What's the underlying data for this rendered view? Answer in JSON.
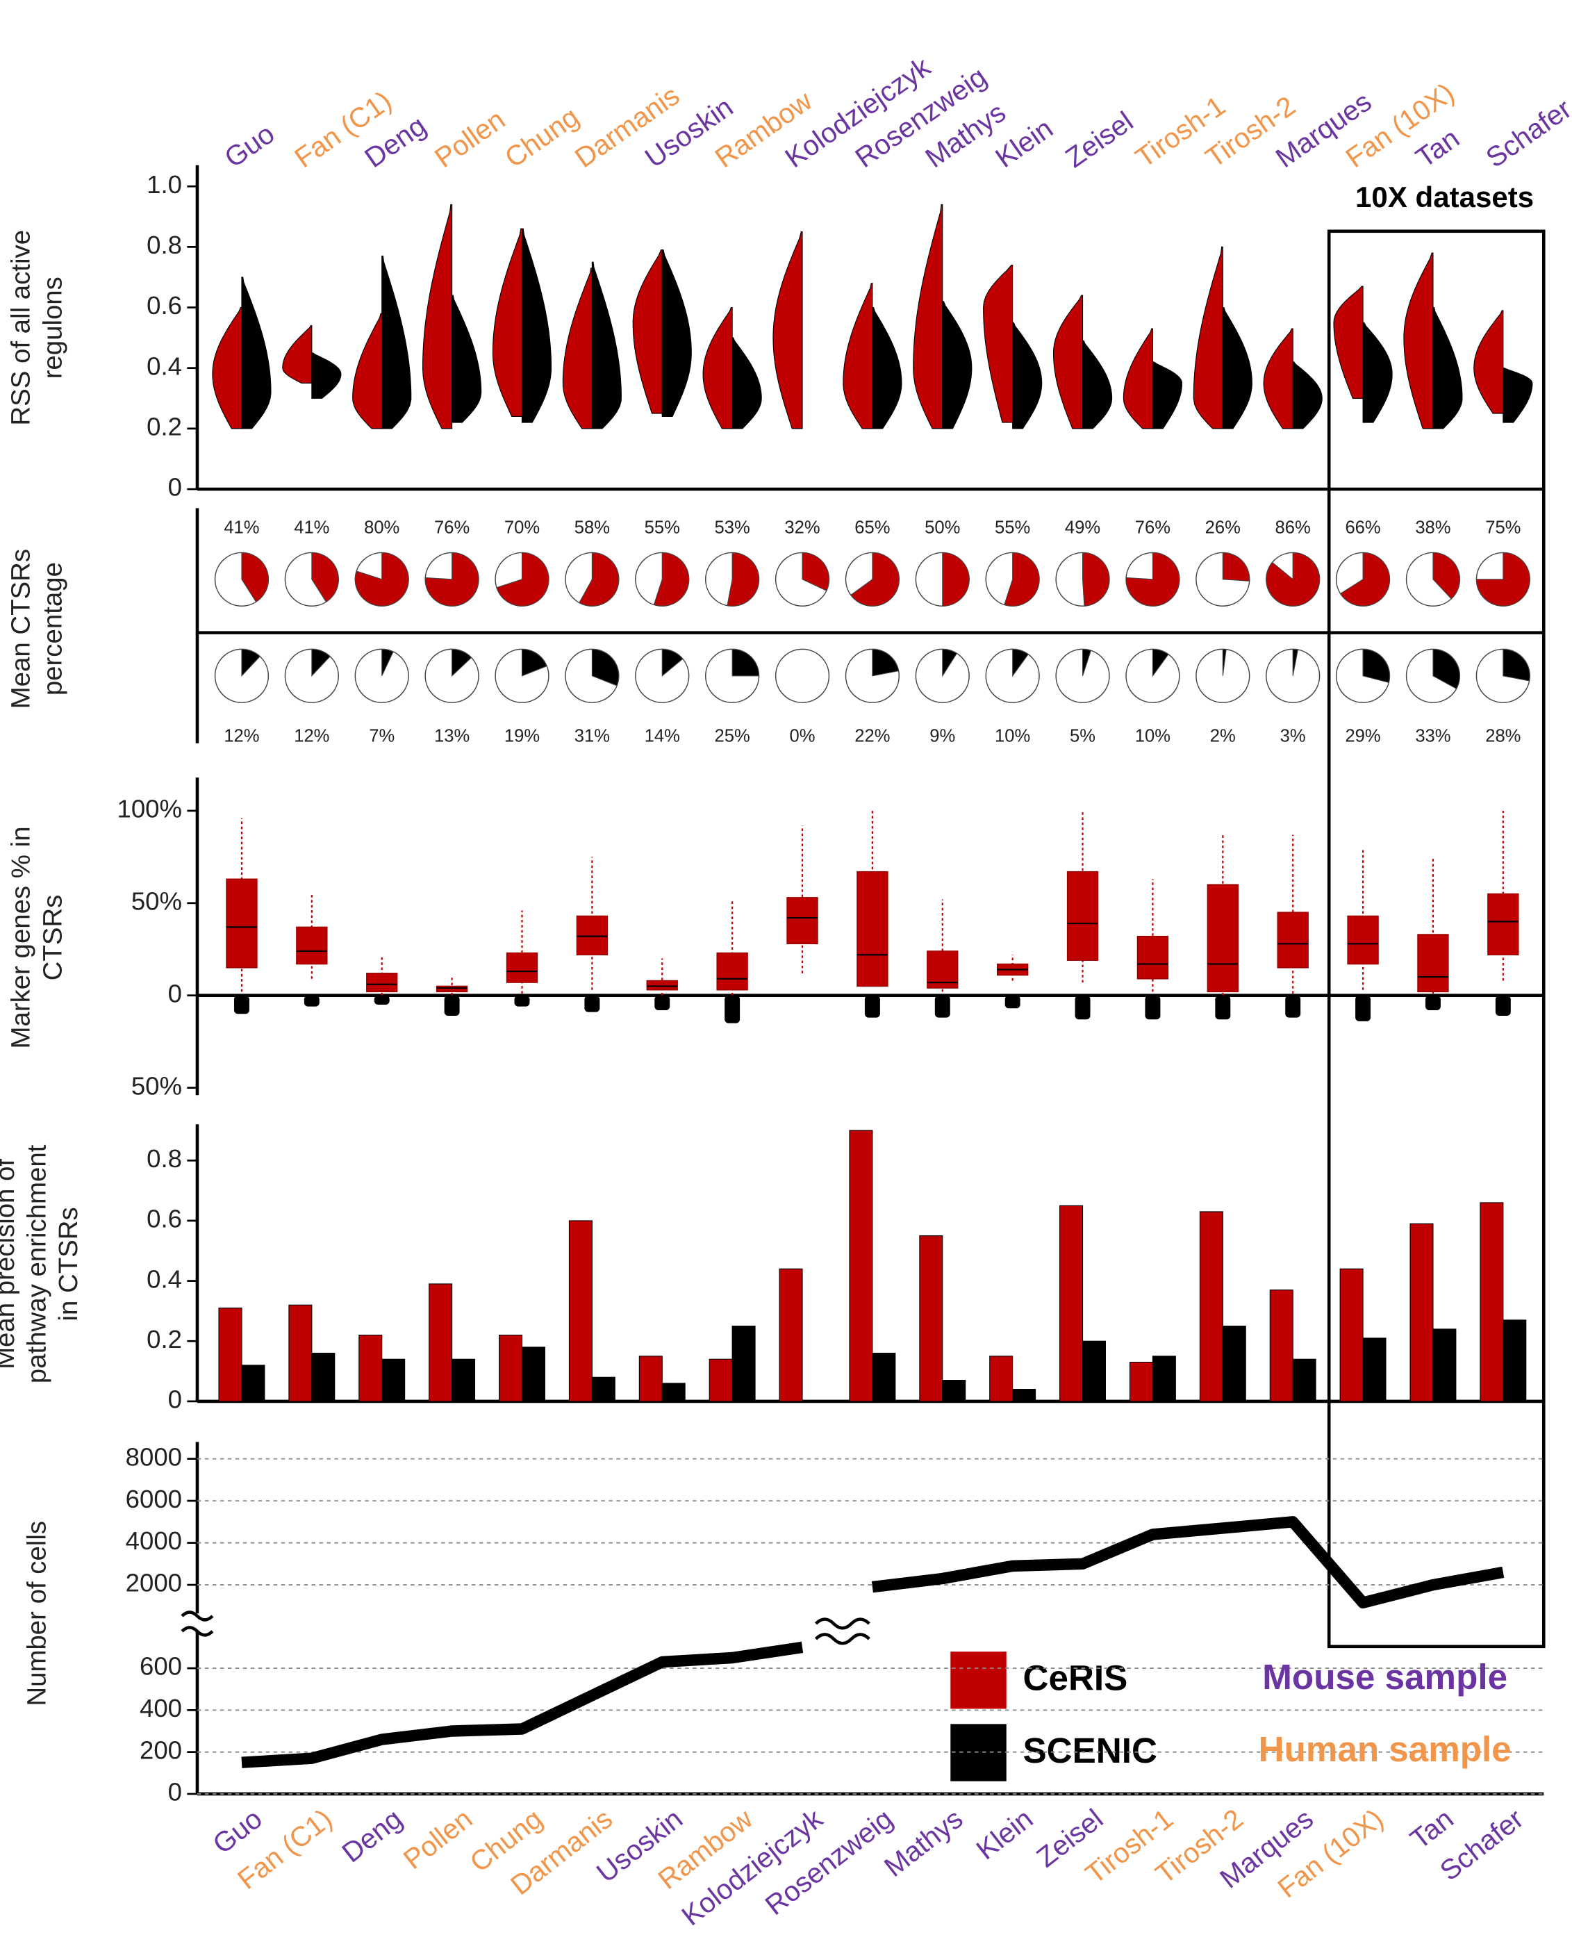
{
  "chart_data": [
    {
      "type": "violin",
      "categories": [
        "Guo",
        "Fan (C1)",
        "Deng",
        "Pollen",
        "Chung",
        "Darmanis",
        "Usoskin",
        "Rambow",
        "Kolodziejczyk",
        "Rosenzweig",
        "Mathys",
        "Klein",
        "Zeisel",
        "Tirosh-1",
        "Tirosh-2",
        "Marques",
        "Fan (10X)",
        "Tan",
        "Schafer"
      ],
      "category_colors": [
        "#6a35a0",
        "#f0954a",
        "#6a35a0",
        "#f0954a",
        "#f0954a",
        "#f0954a",
        "#6a35a0",
        "#f0954a",
        "#6a35a0",
        "#6a35a0",
        "#6a35a0",
        "#6a35a0",
        "#6a35a0",
        "#f0954a",
        "#f0954a",
        "#6a35a0",
        "#f0954a",
        "#6a35a0",
        "#6a35a0"
      ],
      "ylabel": [
        "RSS of all active",
        "regulons"
      ],
      "annotation": "10X datasets",
      "ylim": [
        0,
        1.07
      ],
      "yticks": [
        0,
        0.2,
        0.4,
        0.6,
        0.8,
        {
          "value": 1,
          "label": "1.0"
        }
      ],
      "series": [
        {
          "name": "CeRIS",
          "color": "#c00000",
          "min": [
            0.2,
            0.35,
            0.2,
            0.2,
            0.24,
            0.2,
            0.25,
            0.2,
            0.2,
            0.2,
            0.2,
            0.22,
            0.2,
            0.2,
            0.2,
            0.2,
            0.3,
            0.2,
            0.25
          ],
          "median": [
            0.38,
            0.4,
            0.3,
            0.4,
            0.45,
            0.35,
            0.55,
            0.38,
            0.5,
            0.35,
            0.4,
            0.6,
            0.45,
            0.3,
            0.3,
            0.35,
            0.55,
            0.5,
            0.4
          ],
          "max": [
            0.6,
            0.54,
            0.58,
            0.94,
            0.86,
            0.73,
            0.79,
            0.6,
            0.85,
            0.68,
            0.94,
            0.74,
            0.64,
            0.53,
            0.8,
            0.53,
            0.67,
            0.78,
            0.59
          ]
        },
        {
          "name": "SCENIC",
          "color": "#000000",
          "min": [
            0.2,
            0.3,
            0.2,
            0.22,
            0.22,
            0.2,
            0.24,
            0.2,
            null,
            0.2,
            0.2,
            0.2,
            0.2,
            0.2,
            0.2,
            0.2,
            0.22,
            0.2,
            0.22
          ],
          "median": [
            0.32,
            0.38,
            0.3,
            0.32,
            0.4,
            0.3,
            0.45,
            0.3,
            null,
            0.35,
            0.4,
            0.35,
            0.3,
            0.35,
            0.35,
            0.3,
            0.38,
            0.3,
            0.35
          ],
          "max": [
            0.7,
            0.45,
            0.77,
            0.64,
            0.86,
            0.75,
            0.79,
            0.5,
            null,
            0.6,
            0.62,
            0.55,
            0.49,
            0.42,
            0.6,
            0.42,
            0.55,
            0.6,
            0.4
          ]
        }
      ]
    },
    {
      "type": "pie",
      "ylabel": [
        "Mean CTSRs",
        "percentage"
      ],
      "series": [
        {
          "color": "#c00000",
          "values": [
            41,
            41,
            80,
            76,
            70,
            58,
            55,
            53,
            32,
            65,
            50,
            55,
            49,
            76,
            26,
            86,
            66,
            38,
            75
          ],
          "value_labels": [
            "41%",
            "41%",
            "80%",
            "76%",
            "70%",
            "58%",
            "55%",
            "53%",
            "32%",
            "65%",
            "50%",
            "55%",
            "49%",
            "76%",
            "26%",
            "86%",
            "66%",
            "38%",
            "75%"
          ]
        },
        {
          "color": "#000000",
          "values": [
            12,
            12,
            7,
            13,
            19,
            31,
            14,
            25,
            0,
            22,
            9,
            10,
            5,
            10,
            2,
            3,
            29,
            33,
            28
          ],
          "value_labels": [
            "12%",
            "12%",
            "7%",
            "13%",
            "19%",
            "31%",
            "14%",
            "25%",
            "0%",
            "22%",
            "9%",
            "10%",
            "5%",
            "10%",
            "2%",
            "3%",
            "29%",
            "33%",
            "28%"
          ]
        }
      ]
    },
    {
      "type": "box",
      "ylabel": [
        "Marker genes % in",
        "CTSRs"
      ],
      "ylim": [
        -54,
        118
      ],
      "yticks": [
        {
          "value": 100,
          "label": "100%"
        },
        {
          "value": 50,
          "label": "50%"
        },
        0,
        {
          "value": -50,
          "label": "50%"
        }
      ],
      "series": [
        {
          "color": "#c00000",
          "low": [
            2,
            9,
            0,
            0,
            1,
            3,
            0,
            0,
            12,
            5,
            2,
            8,
            7,
            2,
            0,
            1,
            3,
            1,
            8
          ],
          "q1": [
            15,
            17,
            2,
            2,
            7,
            22,
            3,
            3,
            28,
            5,
            4,
            11,
            19,
            9,
            2,
            15,
            17,
            2,
            22
          ],
          "median": [
            37,
            24,
            6,
            4,
            13,
            32,
            5,
            9,
            42,
            22,
            7,
            14,
            39,
            17,
            17,
            28,
            28,
            10,
            40
          ],
          "q3": [
            63,
            37,
            12,
            5,
            23,
            43,
            8,
            23,
            53,
            67,
            24,
            17,
            67,
            32,
            60,
            45,
            43,
            33,
            55
          ],
          "high": [
            96,
            55,
            22,
            10,
            46,
            75,
            20,
            52,
            92,
            100,
            52,
            22,
            100,
            63,
            88,
            87,
            80,
            75,
            100
          ]
        },
        {
          "color": "#000000",
          "values": [
            -10,
            -6,
            -5,
            -11,
            -6,
            -9,
            -8,
            -15,
            null,
            -12,
            -12,
            -7,
            -13,
            -13,
            -13,
            -12,
            -14,
            -8,
            -11
          ]
        }
      ]
    },
    {
      "type": "bar",
      "ylabel": [
        "Mean precision of",
        "pathway enrichment",
        "in CTSRs"
      ],
      "ylim": [
        0,
        0.92
      ],
      "yticks": [
        0,
        0.2,
        0.4,
        0.6,
        0.8
      ],
      "series": [
        {
          "color": "#c00000",
          "values": [
            0.31,
            0.32,
            0.22,
            0.39,
            0.22,
            0.6,
            0.15,
            0.14,
            0.44,
            0.9,
            0.55,
            0.15,
            0.65,
            0.13,
            0.63,
            0.37,
            0.44,
            0.59,
            0.66
          ]
        },
        {
          "color": "#000000",
          "values": [
            0.12,
            0.16,
            0.14,
            0.14,
            0.18,
            0.08,
            0.06,
            0.25,
            null,
            0.16,
            0.07,
            0.04,
            0.2,
            0.15,
            0.25,
            0.14,
            0.21,
            0.24,
            0.27
          ]
        }
      ]
    },
    {
      "type": "line",
      "categories": [
        "Guo",
        "Fan (C1)",
        "Deng",
        "Pollen",
        "Chung",
        "Darmanis",
        "Usoskin",
        "Rambow",
        "Kolodziejczyk",
        "Rosenzweig",
        "Mathys",
        "Klein",
        "Zeisel",
        "Tirosh-1",
        "Tirosh-2",
        "Marques",
        "Fan (10X)",
        "Tan",
        "Schafer"
      ],
      "category_colors": [
        "#6a35a0",
        "#f0954a",
        "#6a35a0",
        "#f0954a",
        "#f0954a",
        "#f0954a",
        "#6a35a0",
        "#f0954a",
        "#6a35a0",
        "#6a35a0",
        "#6a35a0",
        "#6a35a0",
        "#6a35a0",
        "#f0954a",
        "#f0954a",
        "#6a35a0",
        "#f0954a",
        "#6a35a0",
        "#6a35a0"
      ],
      "ylabel": [
        "Number of cells"
      ],
      "grid": true,
      "segments": [
        {
          "ylim": [
            0,
            740
          ],
          "yticks": [
            0,
            200,
            400,
            600
          ]
        },
        {
          "ylim": [
            1000,
            8800
          ],
          "yticks": [
            2000,
            4000,
            6000,
            8000
          ]
        }
      ],
      "series": [
        {
          "color": "#000000",
          "values": [
            150,
            170,
            260,
            300,
            310,
            470,
            630,
            650,
            700,
            1900,
            2300,
            2900,
            3000,
            4400,
            4700,
            5000,
            1150,
            2000,
            2600
          ]
        }
      ],
      "species_legend": [
        {
          "label": "Mouse sample",
          "color": "#6a35a0"
        },
        {
          "label": "Human sample",
          "color": "#f0954a"
        }
      ]
    }
  ]
}
